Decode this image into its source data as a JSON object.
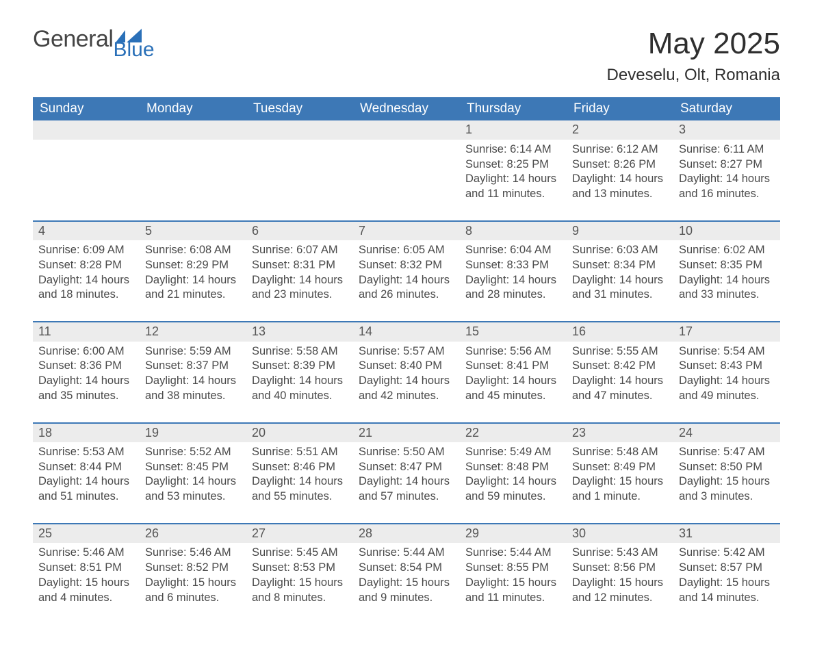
{
  "logo": {
    "word1": "General",
    "word2": "Blue"
  },
  "title": {
    "month": "May 2025",
    "location": "Deveselu, Olt, Romania"
  },
  "colors": {
    "header_blue": "#3d78b6",
    "row_grey": "#ececec",
    "rule_blue": "#3d78b6",
    "text": "#333333",
    "logo_dark": "#444444",
    "logo_blue": "#2a70b8",
    "background": "#ffffff"
  },
  "typography": {
    "title_fontsize_pt": 33,
    "location_fontsize_pt": 18,
    "dayheader_fontsize_pt": 14,
    "daynum_fontsize_pt": 14,
    "body_fontsize_pt": 12,
    "font_family": "Arial"
  },
  "layout": {
    "columns": 7,
    "rows": 5,
    "first_day_column_index": 4
  },
  "day_headers": [
    "Sunday",
    "Monday",
    "Tuesday",
    "Wednesday",
    "Thursday",
    "Friday",
    "Saturday"
  ],
  "weeks": [
    [
      null,
      null,
      null,
      null,
      {
        "n": "1",
        "sunrise": "Sunrise: 6:14 AM",
        "sunset": "Sunset: 8:25 PM",
        "daylight": "Daylight: 14 hours and 11 minutes."
      },
      {
        "n": "2",
        "sunrise": "Sunrise: 6:12 AM",
        "sunset": "Sunset: 8:26 PM",
        "daylight": "Daylight: 14 hours and 13 minutes."
      },
      {
        "n": "3",
        "sunrise": "Sunrise: 6:11 AM",
        "sunset": "Sunset: 8:27 PM",
        "daylight": "Daylight: 14 hours and 16 minutes."
      }
    ],
    [
      {
        "n": "4",
        "sunrise": "Sunrise: 6:09 AM",
        "sunset": "Sunset: 8:28 PM",
        "daylight": "Daylight: 14 hours and 18 minutes."
      },
      {
        "n": "5",
        "sunrise": "Sunrise: 6:08 AM",
        "sunset": "Sunset: 8:29 PM",
        "daylight": "Daylight: 14 hours and 21 minutes."
      },
      {
        "n": "6",
        "sunrise": "Sunrise: 6:07 AM",
        "sunset": "Sunset: 8:31 PM",
        "daylight": "Daylight: 14 hours and 23 minutes."
      },
      {
        "n": "7",
        "sunrise": "Sunrise: 6:05 AM",
        "sunset": "Sunset: 8:32 PM",
        "daylight": "Daylight: 14 hours and 26 minutes."
      },
      {
        "n": "8",
        "sunrise": "Sunrise: 6:04 AM",
        "sunset": "Sunset: 8:33 PM",
        "daylight": "Daylight: 14 hours and 28 minutes."
      },
      {
        "n": "9",
        "sunrise": "Sunrise: 6:03 AM",
        "sunset": "Sunset: 8:34 PM",
        "daylight": "Daylight: 14 hours and 31 minutes."
      },
      {
        "n": "10",
        "sunrise": "Sunrise: 6:02 AM",
        "sunset": "Sunset: 8:35 PM",
        "daylight": "Daylight: 14 hours and 33 minutes."
      }
    ],
    [
      {
        "n": "11",
        "sunrise": "Sunrise: 6:00 AM",
        "sunset": "Sunset: 8:36 PM",
        "daylight": "Daylight: 14 hours and 35 minutes."
      },
      {
        "n": "12",
        "sunrise": "Sunrise: 5:59 AM",
        "sunset": "Sunset: 8:37 PM",
        "daylight": "Daylight: 14 hours and 38 minutes."
      },
      {
        "n": "13",
        "sunrise": "Sunrise: 5:58 AM",
        "sunset": "Sunset: 8:39 PM",
        "daylight": "Daylight: 14 hours and 40 minutes."
      },
      {
        "n": "14",
        "sunrise": "Sunrise: 5:57 AM",
        "sunset": "Sunset: 8:40 PM",
        "daylight": "Daylight: 14 hours and 42 minutes."
      },
      {
        "n": "15",
        "sunrise": "Sunrise: 5:56 AM",
        "sunset": "Sunset: 8:41 PM",
        "daylight": "Daylight: 14 hours and 45 minutes."
      },
      {
        "n": "16",
        "sunrise": "Sunrise: 5:55 AM",
        "sunset": "Sunset: 8:42 PM",
        "daylight": "Daylight: 14 hours and 47 minutes."
      },
      {
        "n": "17",
        "sunrise": "Sunrise: 5:54 AM",
        "sunset": "Sunset: 8:43 PM",
        "daylight": "Daylight: 14 hours and 49 minutes."
      }
    ],
    [
      {
        "n": "18",
        "sunrise": "Sunrise: 5:53 AM",
        "sunset": "Sunset: 8:44 PM",
        "daylight": "Daylight: 14 hours and 51 minutes."
      },
      {
        "n": "19",
        "sunrise": "Sunrise: 5:52 AM",
        "sunset": "Sunset: 8:45 PM",
        "daylight": "Daylight: 14 hours and 53 minutes."
      },
      {
        "n": "20",
        "sunrise": "Sunrise: 5:51 AM",
        "sunset": "Sunset: 8:46 PM",
        "daylight": "Daylight: 14 hours and 55 minutes."
      },
      {
        "n": "21",
        "sunrise": "Sunrise: 5:50 AM",
        "sunset": "Sunset: 8:47 PM",
        "daylight": "Daylight: 14 hours and 57 minutes."
      },
      {
        "n": "22",
        "sunrise": "Sunrise: 5:49 AM",
        "sunset": "Sunset: 8:48 PM",
        "daylight": "Daylight: 14 hours and 59 minutes."
      },
      {
        "n": "23",
        "sunrise": "Sunrise: 5:48 AM",
        "sunset": "Sunset: 8:49 PM",
        "daylight": "Daylight: 15 hours and 1 minute."
      },
      {
        "n": "24",
        "sunrise": "Sunrise: 5:47 AM",
        "sunset": "Sunset: 8:50 PM",
        "daylight": "Daylight: 15 hours and 3 minutes."
      }
    ],
    [
      {
        "n": "25",
        "sunrise": "Sunrise: 5:46 AM",
        "sunset": "Sunset: 8:51 PM",
        "daylight": "Daylight: 15 hours and 4 minutes."
      },
      {
        "n": "26",
        "sunrise": "Sunrise: 5:46 AM",
        "sunset": "Sunset: 8:52 PM",
        "daylight": "Daylight: 15 hours and 6 minutes."
      },
      {
        "n": "27",
        "sunrise": "Sunrise: 5:45 AM",
        "sunset": "Sunset: 8:53 PM",
        "daylight": "Daylight: 15 hours and 8 minutes."
      },
      {
        "n": "28",
        "sunrise": "Sunrise: 5:44 AM",
        "sunset": "Sunset: 8:54 PM",
        "daylight": "Daylight: 15 hours and 9 minutes."
      },
      {
        "n": "29",
        "sunrise": "Sunrise: 5:44 AM",
        "sunset": "Sunset: 8:55 PM",
        "daylight": "Daylight: 15 hours and 11 minutes."
      },
      {
        "n": "30",
        "sunrise": "Sunrise: 5:43 AM",
        "sunset": "Sunset: 8:56 PM",
        "daylight": "Daylight: 15 hours and 12 minutes."
      },
      {
        "n": "31",
        "sunrise": "Sunrise: 5:42 AM",
        "sunset": "Sunset: 8:57 PM",
        "daylight": "Daylight: 15 hours and 14 minutes."
      }
    ]
  ]
}
